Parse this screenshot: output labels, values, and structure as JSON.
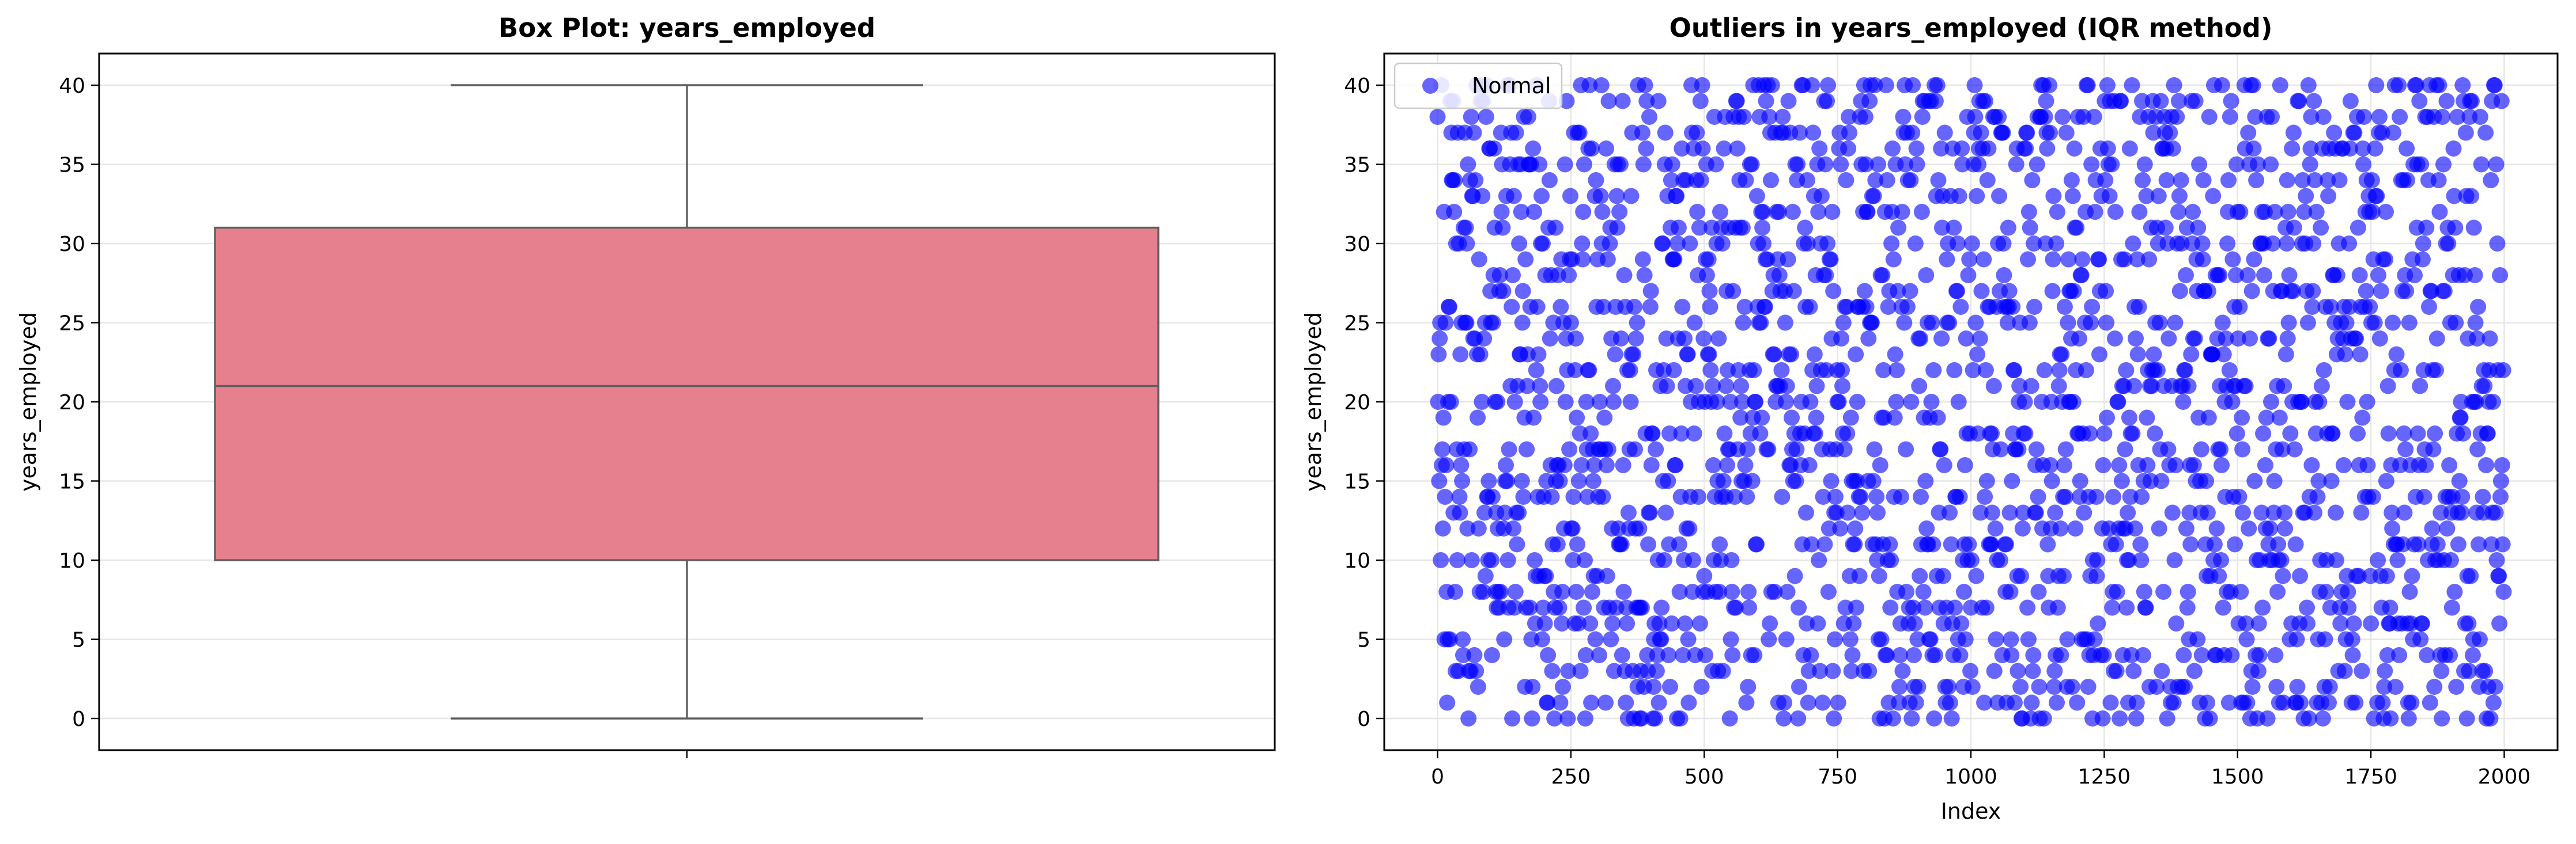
{
  "chart_data": [
    {
      "type": "box",
      "title": "Box Plot: years_employed",
      "ylabel": "years_employed",
      "xlabel": "",
      "ylim": [
        -2,
        42
      ],
      "yticks": [
        0,
        5,
        10,
        15,
        20,
        25,
        30,
        35,
        40
      ],
      "grid": true,
      "box": {
        "min": 0,
        "q1": 10,
        "median": 21,
        "q3": 31,
        "max": 40
      },
      "box_color": "#e6808f",
      "line_color": "#5f5f5f"
    },
    {
      "type": "scatter",
      "title": "Outliers in years_employed (IQR method)",
      "ylabel": "years_employed",
      "xlabel": "Index",
      "xlim": [
        -100,
        2100
      ],
      "ylim": [
        -2,
        42
      ],
      "xticks": [
        0,
        250,
        500,
        750,
        1000,
        1250,
        1500,
        1750,
        2000
      ],
      "yticks": [
        0,
        5,
        10,
        15,
        20,
        25,
        30,
        35,
        40
      ],
      "grid": true,
      "legend": {
        "placement": "top-left",
        "entries": [
          "Normal"
        ]
      },
      "series": [
        {
          "name": "Normal",
          "color": "#0000ff",
          "n": 2000,
          "x_range": [
            0,
            1999
          ],
          "y_values": "integers 0–40, roughly uniform"
        }
      ]
    }
  ]
}
